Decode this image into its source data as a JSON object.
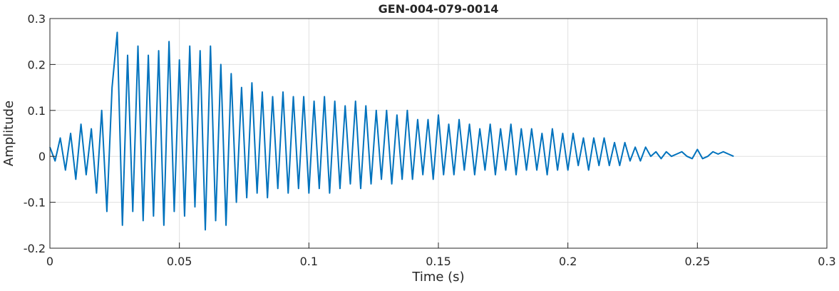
{
  "chart_data": {
    "type": "line",
    "title": "GEN-004-079-0014",
    "x_label": "Time (s)",
    "y_label": "Amplitude",
    "x": [
      0,
      0.002,
      0.004,
      0.006,
      0.008,
      0.01,
      0.012,
      0.014,
      0.016,
      0.018,
      0.02,
      0.022,
      0.024,
      0.026,
      0.028,
      0.03,
      0.032,
      0.034,
      0.036,
      0.038,
      0.04,
      0.042,
      0.044,
      0.046,
      0.048,
      0.05,
      0.052,
      0.054,
      0.056,
      0.058,
      0.06,
      0.062,
      0.064,
      0.066,
      0.068,
      0.07,
      0.072,
      0.074,
      0.076,
      0.078,
      0.08,
      0.082,
      0.084,
      0.086,
      0.088,
      0.09,
      0.092,
      0.094,
      0.096,
      0.098,
      0.1,
      0.102,
      0.104,
      0.106,
      0.108,
      0.11,
      0.112,
      0.114,
      0.116,
      0.118,
      0.12,
      0.122,
      0.124,
      0.126,
      0.128,
      0.13,
      0.132,
      0.134,
      0.136,
      0.138,
      0.14,
      0.142,
      0.144,
      0.146,
      0.148,
      0.15,
      0.152,
      0.154,
      0.156,
      0.158,
      0.16,
      0.162,
      0.164,
      0.166,
      0.168,
      0.17,
      0.172,
      0.174,
      0.176,
      0.178,
      0.18,
      0.182,
      0.184,
      0.186,
      0.188,
      0.19,
      0.192,
      0.194,
      0.196,
      0.198,
      0.2,
      0.202,
      0.204,
      0.206,
      0.208,
      0.21,
      0.212,
      0.214,
      0.216,
      0.218,
      0.22,
      0.222,
      0.224,
      0.226,
      0.228,
      0.23,
      0.232,
      0.234,
      0.236,
      0.238,
      0.24,
      0.242,
      0.244,
      0.246,
      0.248,
      0.25,
      0.252,
      0.254,
      0.256,
      0.258,
      0.26,
      0.262,
      0.264
    ],
    "series": [
      {
        "name": "Amplitude",
        "color": "#0072bd",
        "values": [
          0.02,
          -0.01,
          0.04,
          -0.03,
          0.05,
          -0.05,
          0.07,
          -0.04,
          0.06,
          -0.08,
          0.1,
          -0.12,
          0.15,
          0.27,
          -0.15,
          0.22,
          -0.12,
          0.24,
          -0.14,
          0.22,
          -0.13,
          0.23,
          -0.15,
          0.25,
          -0.12,
          0.21,
          -0.13,
          0.24,
          -0.11,
          0.23,
          -0.16,
          0.24,
          -0.14,
          0.2,
          -0.15,
          0.18,
          -0.1,
          0.15,
          -0.09,
          0.16,
          -0.08,
          0.14,
          -0.09,
          0.13,
          -0.07,
          0.14,
          -0.08,
          0.13,
          -0.07,
          0.13,
          -0.08,
          0.12,
          -0.07,
          0.13,
          -0.08,
          0.12,
          -0.07,
          0.11,
          -0.06,
          0.12,
          -0.07,
          0.11,
          -0.06,
          0.1,
          -0.05,
          0.1,
          -0.06,
          0.09,
          -0.05,
          0.1,
          -0.05,
          0.08,
          -0.04,
          0.08,
          -0.05,
          0.09,
          -0.04,
          0.07,
          -0.04,
          0.08,
          -0.03,
          0.07,
          -0.04,
          0.06,
          -0.03,
          0.07,
          -0.04,
          0.06,
          -0.03,
          0.07,
          -0.04,
          0.06,
          -0.03,
          0.06,
          -0.03,
          0.05,
          -0.04,
          0.06,
          -0.03,
          0.05,
          -0.03,
          0.05,
          -0.02,
          0.04,
          -0.03,
          0.04,
          -0.02,
          0.04,
          -0.02,
          0.03,
          -0.02,
          0.03,
          -0.01,
          0.02,
          -0.01,
          0.02,
          0,
          0.01,
          -0.005,
          0.01,
          0,
          0.005,
          0.01,
          0,
          -0.005,
          0.015,
          -0.005,
          0,
          0.01,
          0.005,
          0.01,
          0.005,
          0
        ]
      }
    ],
    "xlim": [
      0,
      0.3
    ],
    "xticks": [
      0,
      0.05,
      0.1,
      0.15,
      0.2,
      0.25,
      0.3
    ],
    "ylim": [
      -0.2,
      0.3
    ],
    "yticks": [
      -0.2,
      -0.1,
      0,
      0.1,
      0.2,
      0.3
    ],
    "grid": true
  }
}
